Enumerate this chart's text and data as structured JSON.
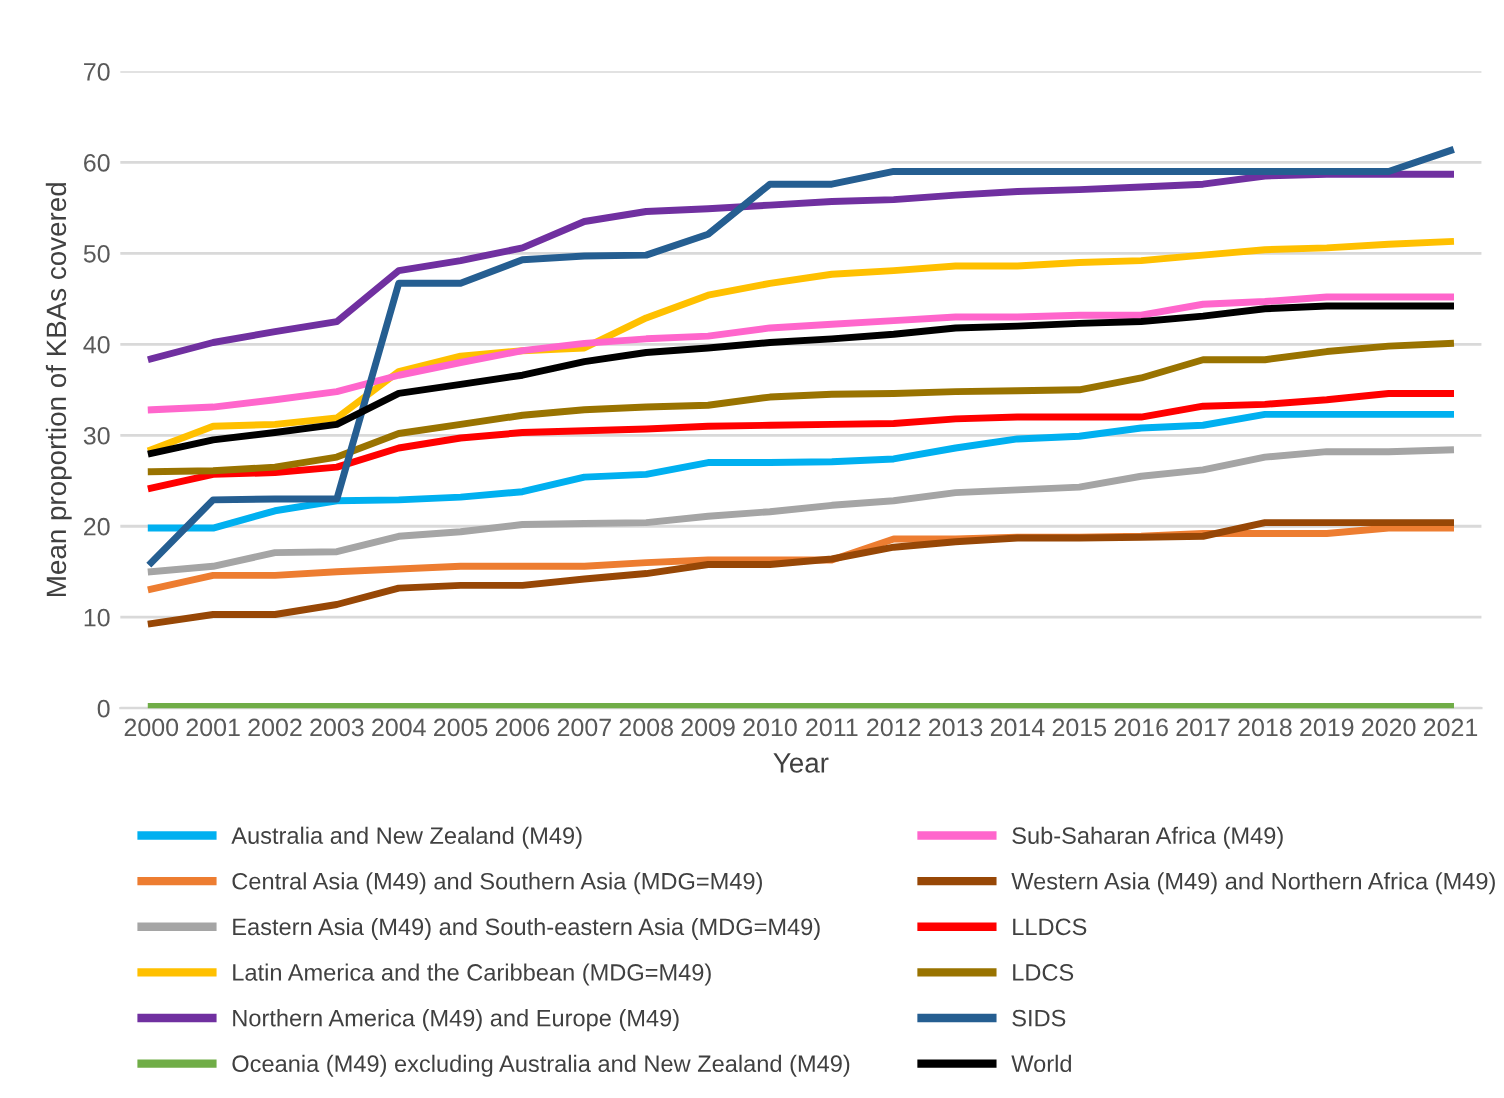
{
  "chart_data": {
    "type": "line",
    "xlabel": "Year",
    "ylabel": "Mean proportion of KBAs covered",
    "categories": [
      "2000",
      "2001",
      "2002",
      "2003",
      "2004",
      "2005",
      "2006",
      "2007",
      "2008",
      "2009",
      "2010",
      "2011",
      "2012",
      "2013",
      "2014",
      "2015",
      "2016",
      "2017",
      "2018",
      "2019",
      "2020",
      "2021"
    ],
    "ylim": [
      0,
      70
    ],
    "yticks": [
      0,
      10,
      20,
      30,
      40,
      50,
      60,
      70
    ],
    "grid": "y",
    "legend": "bottom",
    "marker": "none",
    "line_style": "solid",
    "series": [
      {
        "name": "Australia and New Zealand (M49)",
        "color": "#00b0f0",
        "values": [
          19.8,
          19.8,
          21.7,
          22.8,
          22.9,
          23.2,
          23.8,
          25.4,
          25.7,
          27.0,
          27.0,
          27.1,
          27.4,
          28.6,
          29.6,
          29.9,
          30.8,
          31.1,
          32.3,
          32.3,
          32.3,
          32.3
        ]
      },
      {
        "name": "Central Asia (M49) and Southern Asia (MDG=M49)",
        "color": "#ed7d31",
        "values": [
          13.1,
          14.6,
          14.6,
          15.0,
          15.3,
          15.6,
          15.6,
          15.6,
          16.0,
          16.3,
          16.3,
          16.3,
          18.6,
          18.6,
          18.8,
          18.8,
          18.9,
          19.2,
          19.2,
          19.2,
          19.8,
          19.8
        ]
      },
      {
        "name": "Eastern Asia (M49) and South-eastern Asia (MDG=M49)",
        "color": "#a5a5a5",
        "values": [
          15.0,
          15.6,
          17.1,
          17.2,
          18.9,
          19.4,
          20.2,
          20.3,
          20.4,
          21.1,
          21.6,
          22.3,
          22.8,
          23.7,
          24.0,
          24.3,
          25.5,
          26.2,
          27.6,
          28.2,
          28.2,
          28.4
        ]
      },
      {
        "name": "Latin America and the Caribbean (MDG=M49)",
        "color": "#ffc000",
        "values": [
          28.4,
          31.0,
          31.2,
          31.9,
          37.0,
          38.7,
          39.3,
          39.6,
          42.9,
          45.4,
          46.7,
          47.7,
          48.1,
          48.6,
          48.6,
          49.0,
          49.2,
          49.8,
          50.4,
          50.6,
          51.0,
          51.3
        ]
      },
      {
        "name": "Northern America (M49) and Europe (M49)",
        "color": "#7030a0",
        "values": [
          38.4,
          40.2,
          41.4,
          42.5,
          48.1,
          49.2,
          50.6,
          53.5,
          54.6,
          54.9,
          55.3,
          55.7,
          55.9,
          56.4,
          56.8,
          57.0,
          57.3,
          57.6,
          58.5,
          58.7,
          58.7,
          58.7
        ]
      },
      {
        "name": "Oceania (M49) excluding Australia and New Zealand (M49)",
        "color": "#70ad47",
        "values": [
          0.2,
          0.2,
          0.2,
          0.2,
          0.2,
          0.2,
          0.2,
          0.2,
          0.2,
          0.2,
          0.2,
          0.2,
          0.2,
          0.2,
          0.2,
          0.2,
          0.2,
          0.2,
          0.2,
          0.2,
          0.2,
          0.2
        ]
      },
      {
        "name": "Sub-Saharan Africa (M49)",
        "color": "#ff66cc",
        "values": [
          32.8,
          33.1,
          33.9,
          34.8,
          36.6,
          38.0,
          39.3,
          40.1,
          40.6,
          40.9,
          41.8,
          42.2,
          42.6,
          43.0,
          43.0,
          43.2,
          43.2,
          44.4,
          44.7,
          45.2,
          45.2,
          45.2
        ]
      },
      {
        "name": "Western Asia (M49) and Northern Africa (M49)",
        "color": "#974706",
        "values": [
          9.3,
          10.3,
          10.3,
          11.4,
          13.2,
          13.5,
          13.5,
          14.2,
          14.8,
          15.8,
          15.8,
          16.4,
          17.7,
          18.3,
          18.7,
          18.7,
          18.8,
          18.9,
          20.4,
          20.4,
          20.4,
          20.4
        ]
      },
      {
        "name": "LLDCS",
        "color": "#ff0000",
        "values": [
          24.2,
          25.7,
          25.9,
          26.5,
          28.6,
          29.7,
          30.3,
          30.5,
          30.7,
          31.0,
          31.1,
          31.2,
          31.3,
          31.8,
          32.0,
          32.0,
          32.0,
          33.2,
          33.4,
          33.9,
          34.6,
          34.6
        ]
      },
      {
        "name": "LDCS",
        "color": "#997300",
        "values": [
          26.0,
          26.1,
          26.5,
          27.6,
          30.2,
          31.2,
          32.2,
          32.8,
          33.1,
          33.3,
          34.2,
          34.5,
          34.6,
          34.8,
          34.9,
          35.0,
          36.3,
          38.3,
          38.3,
          39.2,
          39.8,
          40.1
        ]
      },
      {
        "name": "SIDS",
        "color": "#255e91",
        "values": [
          16.0,
          22.9,
          23.0,
          23.0,
          46.7,
          46.7,
          49.3,
          49.7,
          49.8,
          52.1,
          57.6,
          57.6,
          59.0,
          59.0,
          59.0,
          59.0,
          59.0,
          59.0,
          59.0,
          59.0,
          59.0,
          61.3
        ]
      },
      {
        "name": "World",
        "color": "#000000",
        "values": [
          28.0,
          29.5,
          30.3,
          31.2,
          34.6,
          35.6,
          36.6,
          38.1,
          39.1,
          39.6,
          40.2,
          40.6,
          41.1,
          41.8,
          42.0,
          42.3,
          42.5,
          43.1,
          43.9,
          44.2,
          44.2,
          44.2
        ]
      }
    ]
  }
}
